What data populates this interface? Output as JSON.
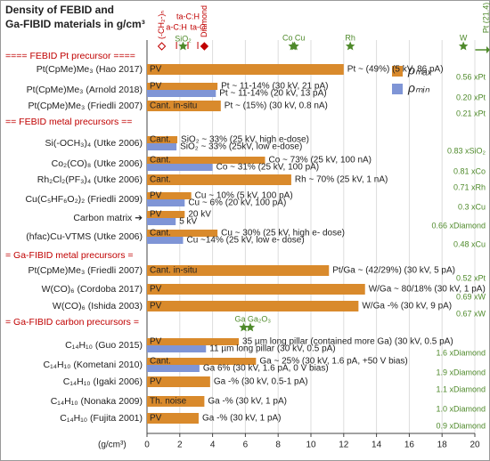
{
  "chart_data": {
    "type": "bar",
    "title": "Density of FEBID and",
    "title_line2": "Ga-FIBID materials in g/cm³",
    "x_label": "(g/cm³)",
    "xlim": [
      0,
      20
    ],
    "xticks": [
      0,
      2,
      4,
      6,
      8,
      10,
      12,
      14,
      16,
      18,
      20
    ],
    "grid": true,
    "legend": [
      {
        "name": "ρₘₐₓ",
        "color": "#d98a2c"
      },
      {
        "name": "ρₘᵢₙ",
        "color": "#7f95d6"
      }
    ],
    "references": [
      {
        "name": "(-CH₂-)ₙ",
        "value": 0.9,
        "color": "#c00000",
        "marker": "diamond-open"
      },
      {
        "name": "a-C:H",
        "value": 1.8,
        "color": "#c00000",
        "marker": "tick"
      },
      {
        "name": "SiO₂",
        "value": 2.2,
        "color": "#4f8a2b",
        "marker": "star"
      },
      {
        "name": "ta-C:H",
        "value": 2.5,
        "color": "#c00000",
        "marker": "tick"
      },
      {
        "name": "ta-C",
        "value": 3.1,
        "color": "#c00000",
        "marker": "tick"
      },
      {
        "name": "Diamond",
        "value": 3.5,
        "color": "#c00000",
        "marker": "diamond"
      },
      {
        "name": "Co",
        "value": 8.9,
        "color": "#4f8a2b",
        "marker": "star"
      },
      {
        "name": "Cu",
        "value": 9.0,
        "color": "#4f8a2b",
        "marker": "star"
      },
      {
        "name": "Rh",
        "value": 12.4,
        "color": "#4f8a2b",
        "marker": "star"
      },
      {
        "name": "W",
        "value": 19.3,
        "color": "#4f8a2b",
        "marker": "star"
      },
      {
        "name": "Ga",
        "value": 5.9,
        "color": "#4f8a2b",
        "marker": "star"
      },
      {
        "name": "Ga₂O₃",
        "value": 6.3,
        "color": "#4f8a2b",
        "marker": "star"
      }
    ],
    "pt_reference": "Pt (21.4)",
    "items": [
      {
        "header": "==== FEBID Pt precursor ===="
      },
      {
        "label": "Pt(CpMe)Me₃ (Hao 2017)",
        "max": 12.0,
        "bar_text": "PV",
        "max_text": "Pt ~ (49%) (5 kV, 86 pA)",
        "note": "0.56 xPt"
      },
      {
        "label": "Pt(CpMe)Me₃ (Arnold 2018)",
        "max": 4.3,
        "min": 4.2,
        "bar_text": "PV",
        "max_text": "Pt ~ 11-14% (30 kV, 21 pA)",
        "min_text": "Pt ~ 11-14% (20 kV, 13 pA)",
        "note": "0.20 xPt"
      },
      {
        "label": "Pt(CpMe)Me₃ (Friedli 2007)",
        "max": 4.5,
        "bar_text": "Cant. in-situ",
        "max_text": "Pt ~ (15%) (30 kV, 0.8 nA)",
        "note": "0.21 xPt"
      },
      {
        "header": "== FEBID metal precursors =="
      },
      {
        "label": "Si(-OCH₃)₄ (Utke 2006)",
        "max": 1.85,
        "min": 1.8,
        "bar_text": "Cant.",
        "max_text": "SiO₂ ~ 33% (25 kV, high e-dose)",
        "min_text": "SiO₂ ~ 33% (25kV, low e-dose)",
        "note": "0.83 xSiO₂"
      },
      {
        "label": "Co₂(CO)₈ (Utke 2006)",
        "max": 7.2,
        "min": 4.0,
        "bar_text": "Cant.",
        "max_text": "Co ~ 73% (25 kV, 100 nA)",
        "min_text": "Co ~ 31% (25 kV, 100 pA)",
        "note": "0.81 xCo"
      },
      {
        "label": "Rh₂Cl₂(PF₃)₄ (Utke 2006)",
        "max": 8.8,
        "bar_text": "Cant.",
        "max_text": "Rh ~ 70% (25 kV, 1 nA)",
        "note": "0.71 xRh"
      },
      {
        "label": "Cu(C₅HF₆O₂)₂ (Friedli 2009)",
        "max": 2.7,
        "min": 2.3,
        "bar_text": "PV",
        "max_text": "Cu ~ 10% (5 kV, 100 pA)",
        "min_text": "Cu ~ 6% (20 kV, 100 pA)",
        "note": "0.3 xCu"
      },
      {
        "label": "Carbon matrix ➔",
        "max": 2.3,
        "min": 1.75,
        "bar_text": "PV",
        "max_text": "20 kV",
        "min_text": "5 kV",
        "note": "0.66 xDiamond"
      },
      {
        "label": "(hfac)Cu-VTMS (Utke 2006)",
        "max": 4.3,
        "min": 2.2,
        "bar_text": "Cant.",
        "max_text": "Cu ~ 30% (25 kV, high e- dose)",
        "min_text": "Cu ~14% (25 kV, low e- dose)",
        "note": "0.48 xCu"
      },
      {
        "header": "= Ga-FIBID metal precursors ="
      },
      {
        "label": "Pt(CpMe)Me₃ (Friedli 2007)",
        "max": 11.1,
        "bar_text": "Cant. in-situ",
        "max_text": "Pt/Ga ~ (42/29%) (30 kV, 5 pA)",
        "note": "0.52 xPt"
      },
      {
        "label": "W(CO)₆ (Cordoba 2017)",
        "max": 13.3,
        "bar_text": "PV",
        "max_text": "W/Ga ~ 80/18% (30 kV, 1 pA)",
        "note": "0.69 xW"
      },
      {
        "label": "W(CO)₆ (Ishida 2003)",
        "max": 12.9,
        "bar_text": "PV",
        "max_text": "W/Ga -% (30 kV, 9 pA)",
        "note": "0.67 xW"
      },
      {
        "header": "= Ga-FIBID carbon precursors ="
      },
      {
        "label": "C₁₄H₁₀ (Guo 2015)",
        "max": 5.6,
        "min": 3.6,
        "bar_text": "PV",
        "max_text": "35 µm long pillar (contained more Ga) (30 kV, 0.5 pA)",
        "min_text": "11 µm long pillar (30 kV, 0.5 pA)",
        "note": "1.6 xDiamond"
      },
      {
        "label": "C₁₄H₁₀ (Kometani 2010)",
        "max": 6.65,
        "min": 3.2,
        "bar_text": "Cant.",
        "max_text": "Ga ~ 25% (30 kV, 1.6 pA, +50 V bias)",
        "min_text": "Ga 6% (30 kV, 1.6 pA, 0 V bias)",
        "note": "1.9 xDiamond"
      },
      {
        "label": "C₁₄H₁₀ (Igaki 2006)",
        "max": 3.85,
        "bar_text": "PV",
        "max_text": "Ga -% (30 kV, 0.5-1 pA)",
        "note": "1.1 xDiamond"
      },
      {
        "label": "C₁₄H₁₀ (Nonaka 2009)",
        "max": 3.5,
        "bar_text": "Th. noise",
        "max_text": "Ga -% (30 kV, 1 pA)",
        "note": "1.0 xDiamond"
      },
      {
        "label": "C₁₄H₁₀ (Fujita 2001)",
        "max": 3.15,
        "bar_text": "PV",
        "max_text": "Ga -% (30 kV, 1 pA)",
        "note": "0.9 xDiamond"
      }
    ]
  }
}
